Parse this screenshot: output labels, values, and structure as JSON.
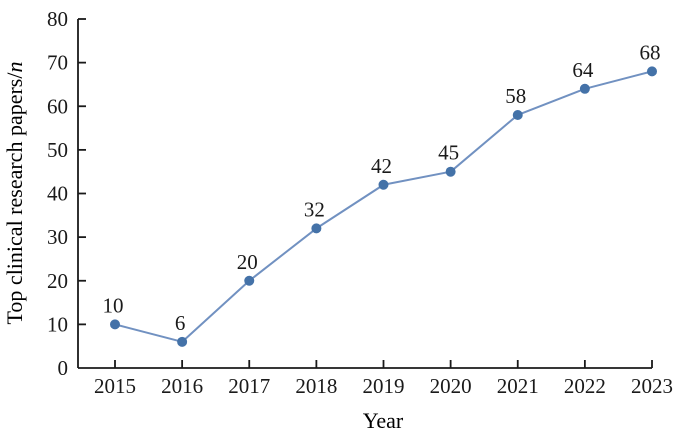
{
  "chart_data": {
    "type": "line",
    "title": "",
    "xlabel": "Year",
    "ylabel": "Top clinical research papers/n",
    "ylabel_main": "Top clinical research papers/",
    "ylabel_italic": "n",
    "categories": [
      "2015",
      "2016",
      "2017",
      "2018",
      "2019",
      "2020",
      "2021",
      "2022",
      "2023"
    ],
    "series": [
      {
        "name": "Top clinical research papers",
        "values": [
          10,
          6,
          20,
          32,
          42,
          45,
          58,
          64,
          68
        ]
      }
    ],
    "data_labels": [
      "10",
      "6",
      "20",
      "32",
      "42",
      "45",
      "58",
      "64",
      "68"
    ],
    "ylim": [
      0,
      80
    ],
    "yticks": [
      0,
      10,
      20,
      30,
      40,
      50,
      60,
      70,
      80
    ],
    "grid": false,
    "legend": "none",
    "tick_direction": "in",
    "colors": {
      "line": "#7191c1",
      "marker": "#4472a8",
      "axis": "#1a1a1a",
      "text": "#1a1a1a",
      "background": "#ffffff"
    }
  }
}
